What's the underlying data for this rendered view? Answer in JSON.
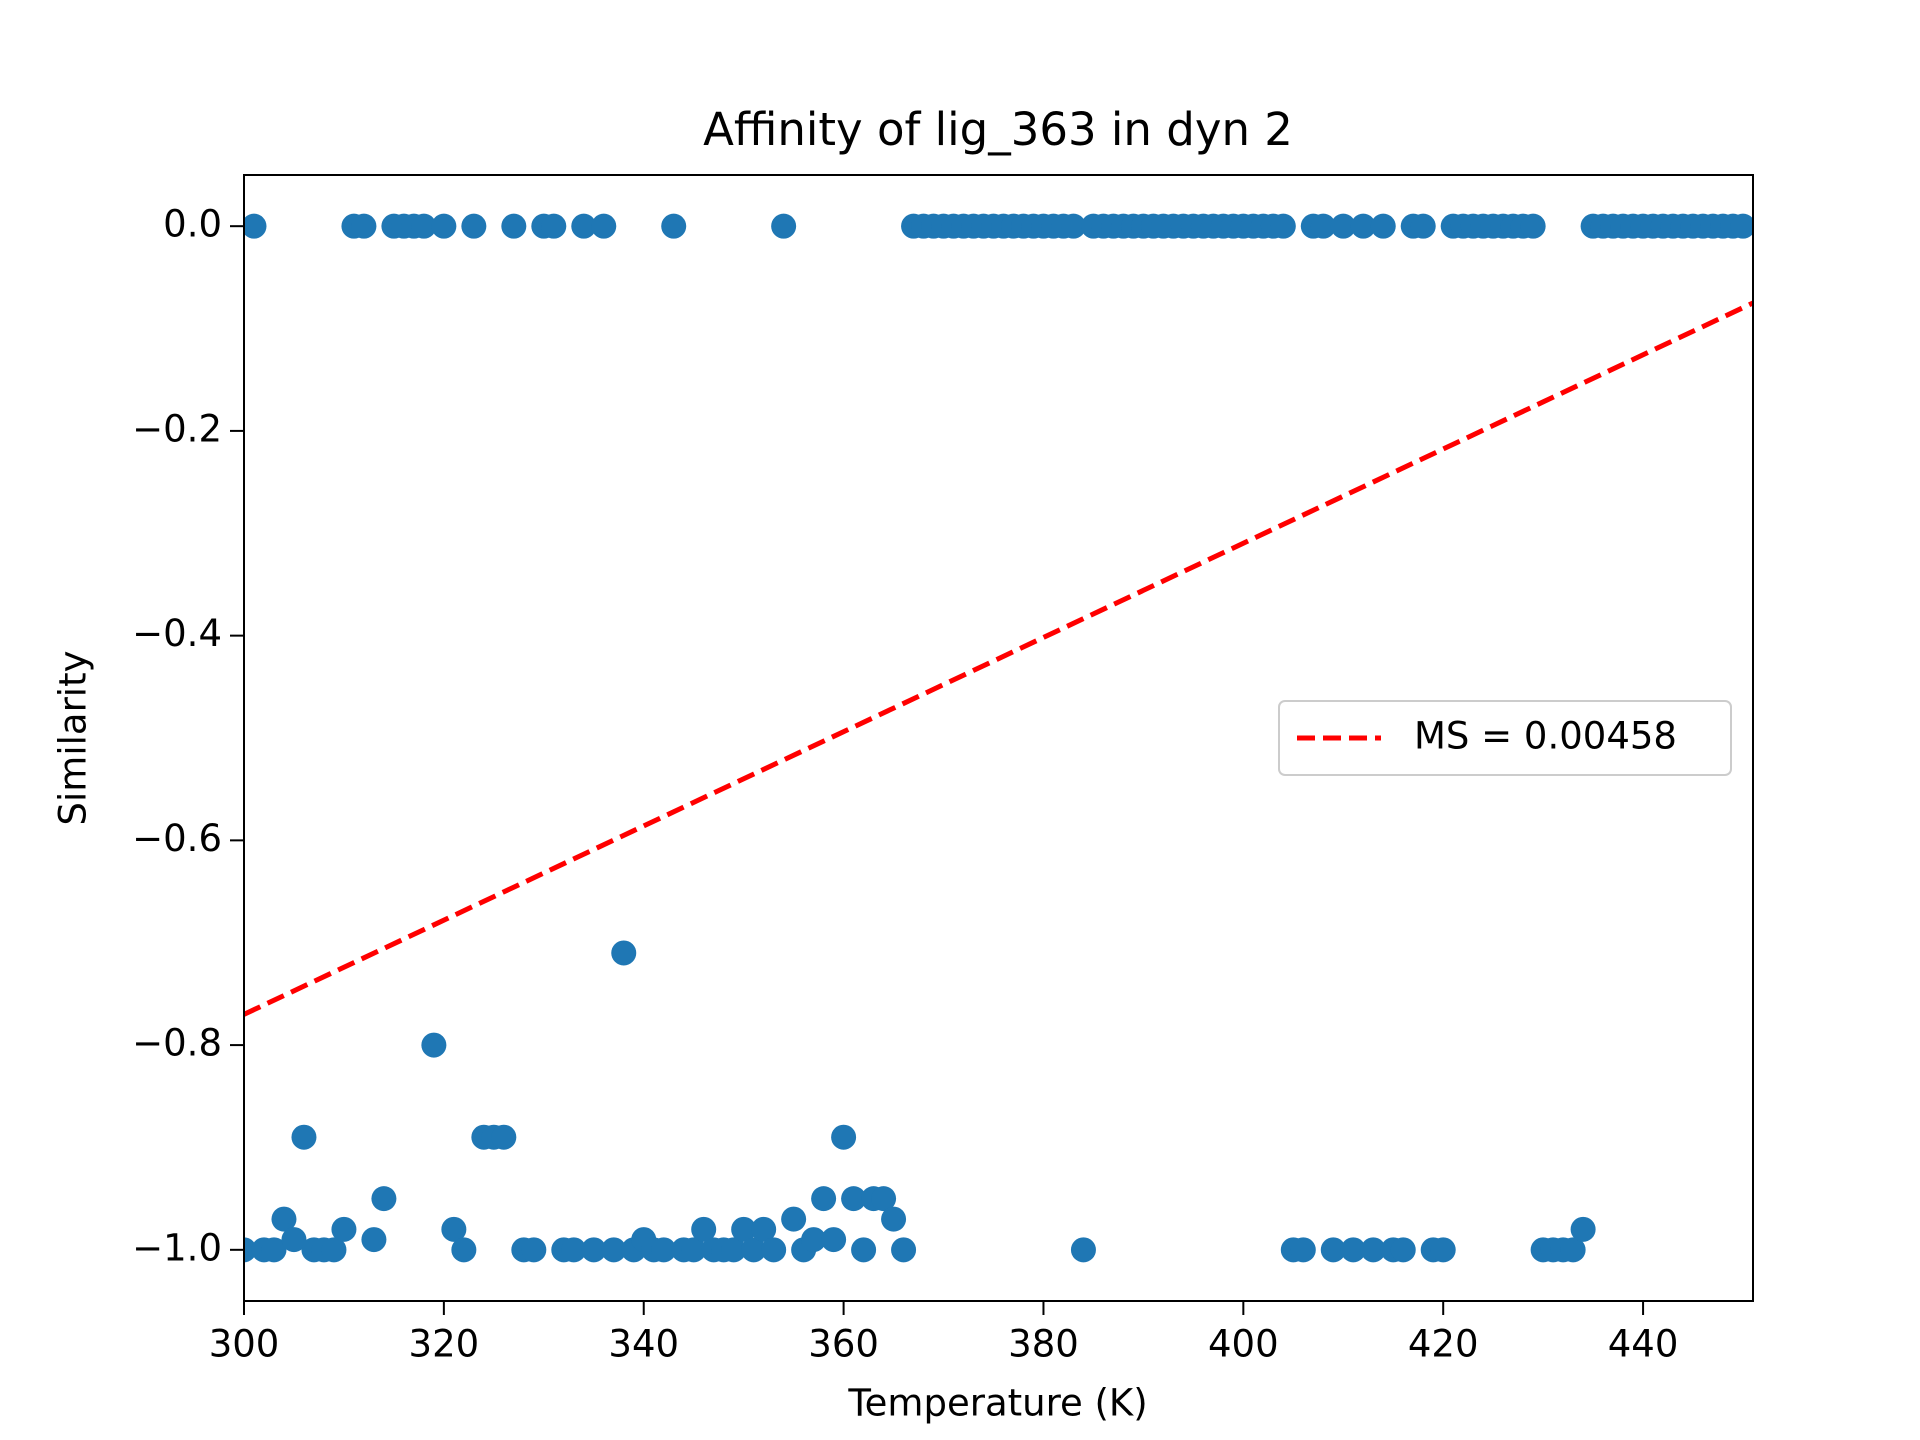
{
  "chart_data": {
    "type": "scatter",
    "title": "Affinity of lig_363 in dyn 2",
    "x_label": "Temperature (K)",
    "y_label": "Similarity",
    "xlim": [
      300,
      451
    ],
    "ylim": [
      -1.05,
      0.05
    ],
    "xticks": [
      300,
      320,
      340,
      360,
      380,
      400,
      420,
      440
    ],
    "yticks": [
      {
        "value": 0,
        "label": "0.0"
      },
      {
        "value": -0.2,
        "label": "−0.2"
      },
      {
        "value": -0.4,
        "label": "−0.4"
      },
      {
        "value": -0.6,
        "label": "−0.6"
      },
      {
        "value": -0.8,
        "label": "−0.8"
      },
      {
        "value": -1.0,
        "label": "−1.0"
      }
    ],
    "legend_position": "center right",
    "series": [
      {
        "color": "#1f77b4",
        "x": [
          300,
          301,
          302,
          303,
          304,
          305,
          306,
          307,
          308,
          309,
          310,
          311,
          312,
          313,
          314,
          315,
          316,
          317,
          318,
          319,
          320,
          321,
          322,
          323,
          324,
          325,
          326,
          327,
          328,
          329,
          330,
          331,
          332,
          333,
          334,
          335,
          336,
          337,
          338,
          339,
          340,
          341,
          342,
          343,
          344,
          345,
          346,
          347,
          348,
          349,
          350,
          351,
          352,
          353,
          354,
          355,
          356,
          357,
          358,
          359,
          360,
          361,
          362,
          363,
          364,
          365,
          366,
          367,
          368,
          369,
          370,
          371,
          372,
          373,
          374,
          375,
          376,
          377,
          378,
          379,
          380,
          381,
          382,
          383,
          384,
          385,
          386,
          387,
          388,
          389,
          390,
          391,
          392,
          393,
          394,
          395,
          396,
          397,
          398,
          399,
          400,
          401,
          402,
          403,
          404,
          405,
          406,
          407,
          408,
          409,
          410,
          411,
          412,
          413,
          414,
          415,
          416,
          417,
          418,
          419,
          420,
          421,
          422,
          423,
          424,
          425,
          426,
          427,
          428,
          429,
          430,
          431,
          432,
          433,
          434,
          435,
          436,
          437,
          438,
          439,
          440,
          441,
          442,
          443,
          444,
          445,
          446,
          447,
          448,
          449,
          450
        ],
        "values": [
          -1,
          0,
          -1,
          -1,
          -0.97,
          -0.99,
          -0.89,
          -1,
          -1,
          -1,
          -0.98,
          0,
          0,
          -0.99,
          -0.95,
          0,
          0,
          0,
          0,
          -0.8,
          0,
          -0.98,
          -1,
          0,
          -0.89,
          -0.89,
          -0.89,
          0,
          -1,
          -1,
          0,
          0,
          -1,
          -1,
          0,
          -1,
          0,
          -1,
          -0.71,
          -1,
          -0.99,
          -1,
          -1,
          0,
          -1,
          -1,
          -0.98,
          -1,
          -1,
          -1,
          -0.98,
          -1,
          -0.98,
          -1,
          0,
          -0.97,
          -1,
          -0.99,
          -0.95,
          -0.99,
          -0.89,
          -0.95,
          -1,
          -0.95,
          -0.95,
          -0.97,
          -1,
          0,
          0,
          0,
          0,
          0,
          0,
          0,
          0,
          0,
          0,
          0,
          0,
          0,
          0,
          0,
          0,
          0,
          -1,
          0,
          0,
          0,
          0,
          0,
          0,
          0,
          0,
          0,
          0,
          0,
          0,
          0,
          0,
          0,
          0,
          0,
          0,
          0,
          0,
          -1,
          -1,
          0,
          0,
          -1,
          0,
          -1,
          0,
          -1,
          0,
          -1,
          -1,
          0,
          0,
          -1,
          -1,
          0,
          0,
          0,
          0,
          0,
          0,
          0,
          0,
          0,
          -1,
          -1,
          -1,
          -1,
          -0.98,
          0,
          0,
          0,
          0,
          0,
          0,
          0,
          0,
          0,
          0,
          0,
          0,
          0,
          0,
          0,
          0
        ]
      },
      {
        "name": "MS = 0.00458",
        "color": "#ff0000",
        "style": "dashed",
        "x": [
          300,
          451
        ],
        "values": [
          -0.77,
          -0.075
        ]
      }
    ]
  }
}
